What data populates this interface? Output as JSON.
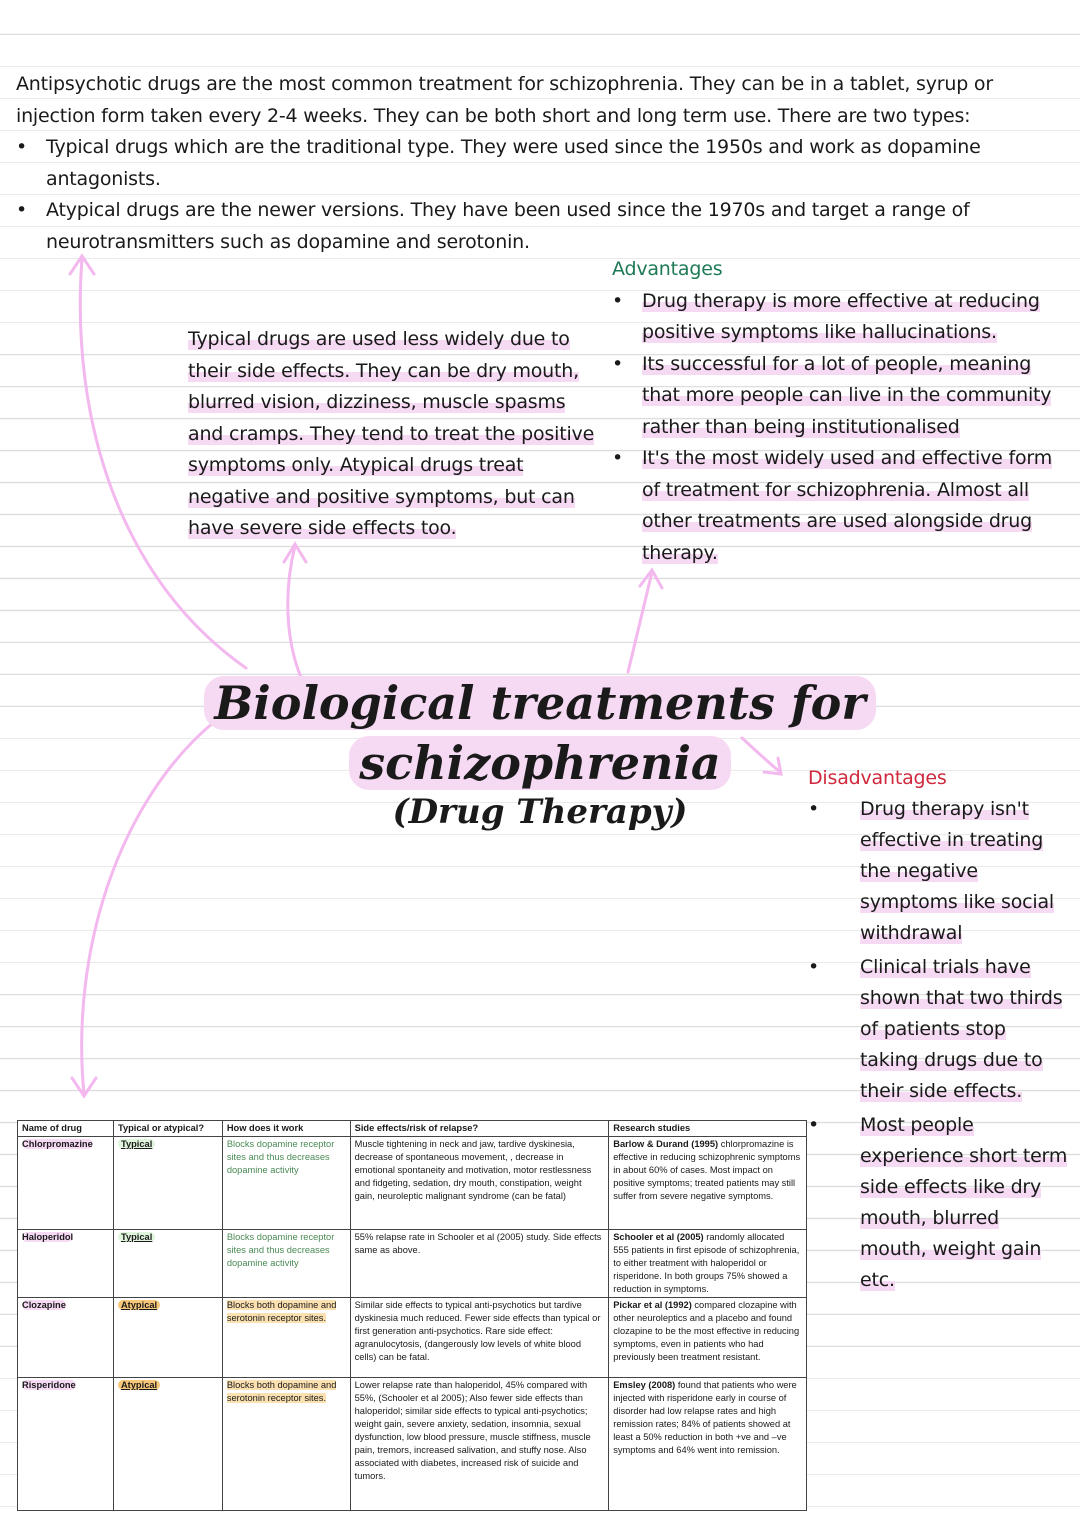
{
  "intro": {
    "text": "Antipsychotic drugs are the most common treatment for schizophrenia. They can be in a tablet, syrup or injection form taken every 2-4 weeks. They can be both short and long term use. There are two types:",
    "bullets": [
      "Typical drugs which are the traditional type. They were used since the 1950s and work as dopamine antagonists.",
      "Atypical drugs are the newer versions. They have been used since the 1970s and target a range of neurotransmitters such as dopamine and serotonin."
    ]
  },
  "side_note": "Typical drugs are used less widely due to their side effects. They can be dry mouth, blurred vision, dizziness, muscle spasms and cramps. They tend to treat the positive symptoms only. Atypical drugs treat negative and positive symptoms, but can have severe side effects too.",
  "advantages": {
    "heading": "Advantages",
    "items": [
      "Drug therapy is more effective at reducing positive symptoms like hallucinations.",
      "Its successful for a lot of people, meaning that more people can live in the community rather than being institutionalised",
      "It's the most widely used and effective form of treatment for schizophrenia. Almost all other treatments are used alongside drug therapy."
    ]
  },
  "title": {
    "line1": "Biological treatments for",
    "line2": "schizophrenia",
    "line3": "(Drug Therapy)"
  },
  "disadvantages": {
    "heading": "Disadvantages",
    "items": [
      "Drug therapy isn't effective in treating the negative symptoms like social withdrawal",
      "Clinical trials have shown that two thirds of patients stop taking drugs due to their side effects.",
      "Most people experience short term side effects like dry mouth, blurred mouth, weight gain etc."
    ]
  },
  "colors": {
    "highlight_pink": "#f6d9f3",
    "advantages": "#1e7a55",
    "disadvantages": "#d0283c",
    "typical": "#dff5dc",
    "atypical": "#f8c77a",
    "arrow": "#f3b8ee"
  },
  "table": {
    "headers": [
      "Name of drug",
      "Typical or atypical?",
      "How does it work",
      "Side effects/risk of relapse?",
      "Research studies"
    ],
    "rows": [
      {
        "drug": "Chlorpromazine",
        "type": "Typical",
        "how": "Blocks dopamine receptor sites and thus decreases dopamine activity",
        "side": "Muscle tightening in neck and jaw, tardive dyskinesia, decrease of spontaneous movement, , decrease in emotional spontaneity and motivation, motor restlessness and fidgeting, sedation, dry mouth, constipation, weight gain, neuroleptic malignant syndrome (can be fatal)",
        "study_bold": "Barlow & Durand (1995)",
        "study": " chlorpromazine is effective in reducing schizophrenic symptoms in about 60% of cases. Most impact on positive symptoms; treated patients may still suffer from severe negative symptoms."
      },
      {
        "drug": "Haloperidol",
        "type": "Typical",
        "how": "Blocks dopamine receptor sites and thus decreases dopamine activity",
        "side": "55% relapse rate in Schooler et al (2005) study. Side effects same as above.",
        "study_bold": "Schooler et al (2005)",
        "study": " randomly allocated 555 patients in first episode of schizophrenia, to either treatment with haloperidol or risperidone. In both groups 75% showed a reduction in symptoms."
      },
      {
        "drug": "Clozapine",
        "type": "Atypical",
        "how": "Blocks both dopamine and serotonin receptor sites.",
        "side": "Similar side effects to typical anti-psychotics but tardive dyskinesia much reduced. Fewer side effects than typical or first generation anti-psychotics. Rare side effect: agranulocytosis, (dangerously low levels of white blood cells) can be fatal.",
        "study_bold": "Pickar et al (1992)",
        "study": " compared clozapine with other neuroleptics and a placebo and found clozapine to be the most effective in reducing symptoms, even in patients who had previously been treatment resistant."
      },
      {
        "drug": "Risperidone",
        "type": "Atypical",
        "how": "Blocks both dopamine and serotonin receptor sites.",
        "side": "Lower relapse rate than haloperidol, 45% compared with 55%, (Schooler et al 2005); Also fewer side effects than haloperidol;  similar side effects to typical anti-psychotics; weight gain, severe anxiety, sedation, insomnia, sexual dysfunction, low blood pressure, muscle stiffness, muscle pain, tremors, increased salivation, and stuffy nose. Also associated with diabetes, increased risk of suicide and tumors.",
        "study_bold": "Emsley (2008)",
        "study": " found that patients who were injected with risperidone early in course of disorder had low relapse rates and high remission rates; 84% of patients showed at least a 50% reduction in both +ve and –ve symptoms and 64% went into remission."
      }
    ]
  }
}
